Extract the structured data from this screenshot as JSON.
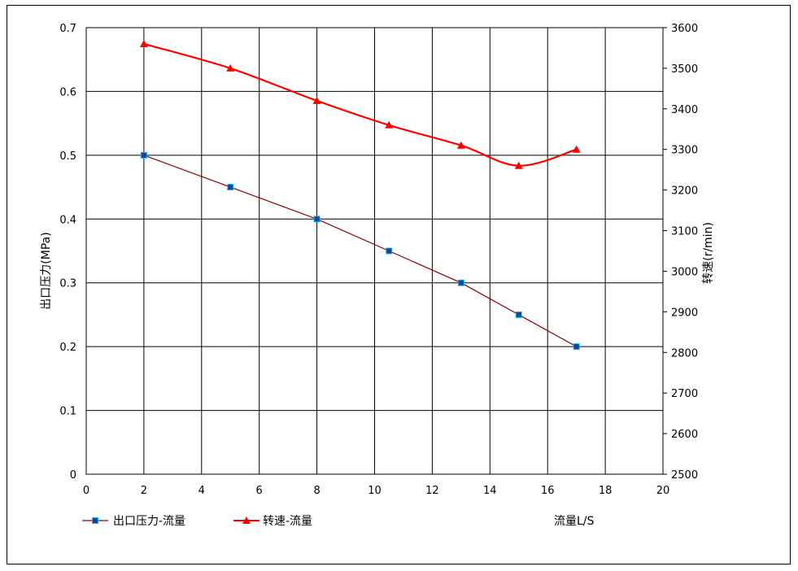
{
  "chart_data": {
    "type": "line",
    "x_axis": {
      "label": "流量L/S",
      "min": 0,
      "max": 20,
      "ticks": [
        0,
        2,
        4,
        6,
        8,
        10,
        12,
        14,
        16,
        18,
        20
      ]
    },
    "y_axis_left": {
      "label": "出口压力(MPa)",
      "min": 0,
      "max": 0.7,
      "ticks": [
        0,
        0.1,
        0.2,
        0.3,
        0.4,
        0.5,
        0.6,
        0.7
      ]
    },
    "y_axis_right": {
      "label": "转速(r/min)",
      "min": 2500,
      "max": 3600,
      "ticks": [
        2500,
        2600,
        2700,
        2800,
        2900,
        3000,
        3100,
        3200,
        3300,
        3400,
        3500,
        3600
      ]
    },
    "grid": true,
    "legend_position": "bottom-left",
    "series": [
      {
        "name": "出口压力-流量",
        "axis": "left",
        "color": "#8b0000",
        "marker": "square",
        "marker_color": "#1f3f8f",
        "x": [
          2,
          5,
          8,
          10.5,
          13,
          15,
          17
        ],
        "values": [
          0.5,
          0.45,
          0.4,
          0.35,
          0.3,
          0.25,
          0.2
        ]
      },
      {
        "name": "转速-流量",
        "axis": "right",
        "color": "#ff0000",
        "marker": "triangle",
        "marker_color": "#ff0000",
        "x": [
          2,
          5,
          8,
          10.5,
          13,
          15,
          17
        ],
        "values": [
          3560,
          3500,
          3420,
          3360,
          3310,
          3260,
          3300
        ]
      }
    ]
  }
}
